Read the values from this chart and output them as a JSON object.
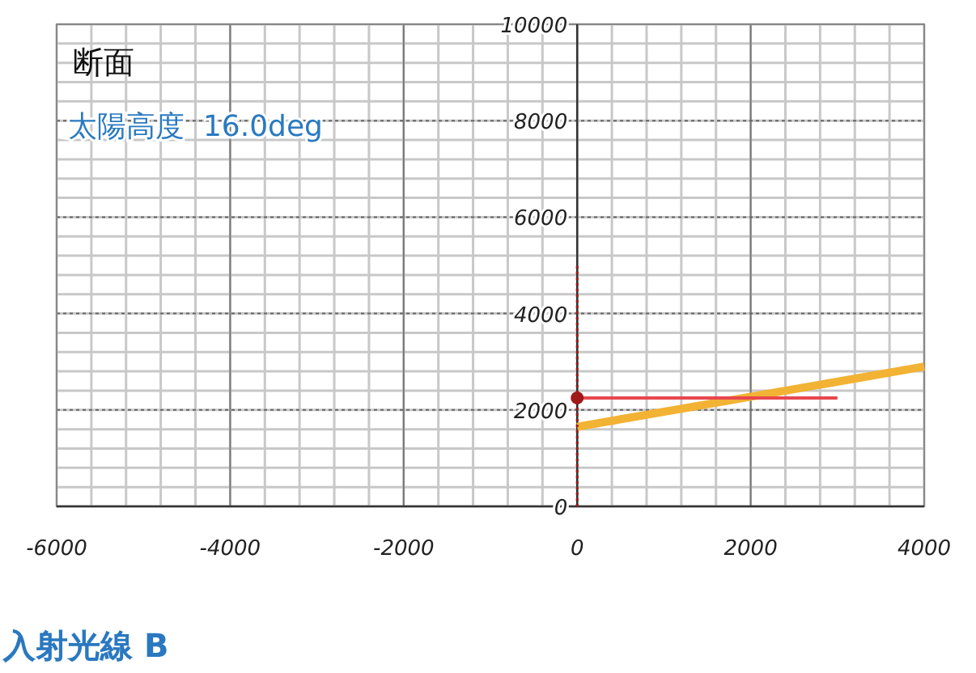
{
  "chart_data": {
    "type": "line",
    "title": "断面",
    "subtitle": "太陽高度  16.0deg",
    "annotations": [
      "入射光線 B"
    ],
    "xlim": [
      -6000,
      4000
    ],
    "xticks": [
      -6000,
      -4000,
      -2000,
      0,
      2000,
      4000
    ],
    "ylim": [
      0,
      10000
    ],
    "yticks": [
      0,
      2000,
      4000,
      6000,
      8000,
      10000
    ],
    "grid": true,
    "series": [
      {
        "color": "#f2b233",
        "x": [
          0,
          4000
        ],
        "values": [
          1650,
          2900
        ],
        "marker": "none"
      },
      {
        "color": "#e8474f",
        "x": [
          0,
          3000
        ],
        "values": [
          2250,
          2250
        ],
        "marker": "none"
      },
      {
        "color": "#a01818",
        "x": [
          0,
          0
        ],
        "values": [
          0,
          5000
        ],
        "marker": "none",
        "line_style": "dotted"
      },
      {
        "type": "scatter",
        "color": "#a01818",
        "x": [
          0
        ],
        "values": [
          2250
        ]
      }
    ]
  }
}
